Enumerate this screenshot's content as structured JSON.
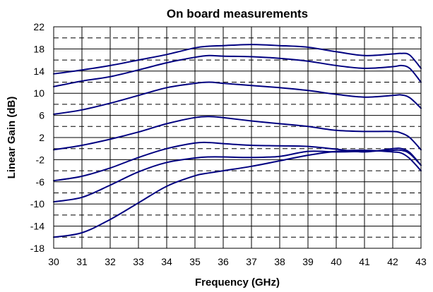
{
  "chart_data": {
    "type": "line",
    "title": "On board measurements",
    "xlabel": "Frequency (GHz)",
    "ylabel": "Linear Gain (dB)",
    "xlim": [
      30,
      43
    ],
    "ylim": [
      -18,
      22
    ],
    "x_ticks": [
      "30",
      "31",
      "32",
      "33",
      "34",
      "35",
      "36",
      "37",
      "38",
      "39",
      "40",
      "41",
      "42",
      "43"
    ],
    "y_ticks": [
      "-18",
      "-14",
      "-10",
      "-6",
      "-2",
      "2",
      "6",
      "10",
      "14",
      "18",
      "22"
    ],
    "grid": {
      "vertical": "solid at every 1 GHz",
      "horizontal_solid": "at labeled ticks",
      "horizontal_dashed": "midway between labeled ticks"
    },
    "line_color": "#000080",
    "series": [
      {
        "x": [
          30,
          31,
          32,
          33,
          34,
          35,
          35.5,
          36,
          37,
          38,
          39,
          40,
          41,
          42,
          42.3,
          42.6,
          43
        ],
        "values": [
          13.5,
          14.2,
          15.0,
          16.0,
          17.0,
          18.2,
          18.5,
          18.6,
          18.8,
          18.6,
          18.3,
          17.5,
          16.8,
          17.1,
          17.2,
          16.9,
          14.5
        ]
      },
      {
        "x": [
          30,
          31,
          32,
          33,
          34,
          35,
          35.5,
          36,
          37,
          38,
          39,
          40,
          41,
          42,
          42.3,
          42.6,
          43
        ],
        "values": [
          11.2,
          12.2,
          13.0,
          14.2,
          15.5,
          16.5,
          16.8,
          16.7,
          16.6,
          16.3,
          15.8,
          15.0,
          14.5,
          14.8,
          15.0,
          14.5,
          12.0
        ]
      },
      {
        "x": [
          30,
          31,
          32,
          33,
          34,
          35,
          35.5,
          36,
          37,
          38,
          39,
          40,
          41,
          42,
          42.3,
          42.6,
          43
        ],
        "values": [
          6.2,
          7.0,
          8.2,
          9.6,
          11.0,
          11.8,
          12.0,
          11.8,
          11.4,
          11.0,
          10.5,
          9.8,
          9.3,
          9.6,
          9.7,
          9.2,
          7.3
        ]
      },
      {
        "x": [
          30,
          31,
          32,
          33,
          34,
          35,
          35.5,
          36,
          37,
          38,
          39,
          40,
          41,
          42,
          42.3,
          42.6,
          43
        ],
        "values": [
          -0.2,
          0.6,
          1.7,
          3.0,
          4.5,
          5.6,
          5.8,
          5.6,
          5.0,
          4.5,
          4.0,
          3.3,
          3.1,
          3.1,
          2.8,
          2.0,
          -0.2
        ]
      },
      {
        "x": [
          30,
          31,
          32,
          33,
          34,
          35,
          35.5,
          36,
          37,
          38,
          39,
          40,
          41,
          42,
          42.3,
          42.6,
          43
        ],
        "values": [
          -5.8,
          -5.0,
          -3.5,
          -1.6,
          0.0,
          1.0,
          1.1,
          0.9,
          0.6,
          0.5,
          0.4,
          -0.1,
          -0.6,
          0.0,
          0.0,
          -0.7,
          -3.0
        ]
      },
      {
        "x": [
          30,
          31,
          32,
          33,
          34,
          35,
          35.5,
          36,
          37,
          38,
          39,
          40,
          41,
          42,
          42.3,
          42.6,
          43
        ],
        "values": [
          -9.6,
          -8.8,
          -6.6,
          -4.2,
          -2.5,
          -1.7,
          -1.5,
          -1.5,
          -1.6,
          -1.4,
          -0.5,
          -0.6,
          -0.5,
          -0.3,
          -0.3,
          -0.9,
          -3.0
        ]
      },
      {
        "x": [
          30,
          31,
          32,
          33,
          34,
          35,
          35.5,
          36,
          37,
          38,
          39,
          40,
          41,
          42,
          42.3,
          42.6,
          43
        ],
        "values": [
          -16.0,
          -15.2,
          -12.8,
          -9.8,
          -6.8,
          -4.9,
          -4.4,
          -4.0,
          -3.2,
          -2.2,
          -1.2,
          -0.5,
          -0.3,
          -0.6,
          -0.8,
          -1.8,
          -4.0
        ]
      }
    ]
  }
}
